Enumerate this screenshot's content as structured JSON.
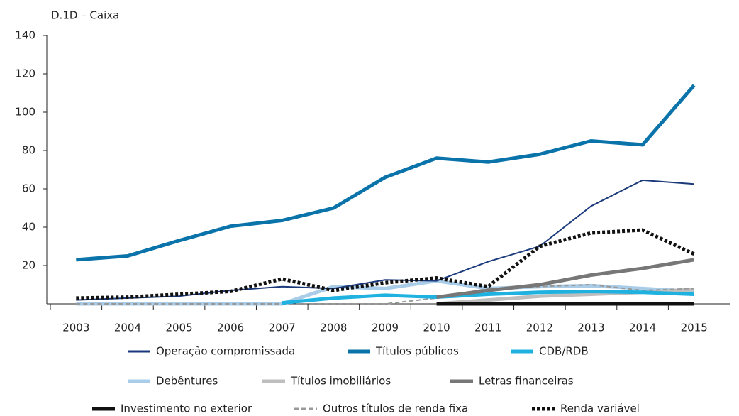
{
  "chart_data": {
    "type": "line",
    "title": "D.1D – Caixa",
    "categories": [
      "2003",
      "2004",
      "2005",
      "2006",
      "2007",
      "2008",
      "2009",
      "2010",
      "2011",
      "2012",
      "2013",
      "2014",
      "2015"
    ],
    "ylim": [
      0,
      140
    ],
    "yticks": [
      20,
      40,
      60,
      80,
      100,
      120,
      140
    ],
    "series": [
      {
        "name": "Operação compromissada",
        "color": "#1b3a7c",
        "values": [
          2,
          3,
          4,
          7,
          9,
          8,
          12.5,
          12,
          22,
          30,
          51,
          64.5,
          62.5
        ]
      },
      {
        "name": "Títulos públicos",
        "color": "#0a73aa",
        "values": [
          23,
          25,
          33,
          40.5,
          43.5,
          50,
          66,
          76,
          74,
          78,
          85,
          83,
          114
        ]
      },
      {
        "name": "CDB/RDB",
        "color": "#1fb1e0",
        "values": [
          null,
          null,
          null,
          null,
          0.5,
          3,
          4.5,
          3.5,
          5,
          6,
          6.5,
          6,
          5
        ]
      },
      {
        "name": "Debêntures",
        "color": "#a9cde9",
        "values": [
          0,
          0,
          0,
          0,
          0,
          9,
          8,
          12,
          8,
          9,
          9.5,
          8,
          6.5
        ]
      },
      {
        "name": "Títulos imobiliários",
        "color": "#bebebe",
        "values": [
          null,
          null,
          null,
          null,
          null,
          null,
          null,
          0,
          2,
          4,
          5,
          6,
          7.5
        ]
      },
      {
        "name": "Letras financeiras",
        "color": "#777777",
        "values": [
          null,
          null,
          null,
          null,
          null,
          null,
          null,
          3.5,
          7,
          10,
          15,
          18.5,
          23
        ]
      },
      {
        "name": "Investimento no exterior",
        "color": "#111111",
        "values": [
          null,
          null,
          null,
          null,
          null,
          null,
          null,
          0,
          0,
          0,
          0,
          0,
          0
        ]
      },
      {
        "name": "Outros títulos de renda fixa",
        "color": "#999999",
        "dash": "dashed",
        "values": [
          0,
          0,
          0,
          0,
          0,
          0,
          0,
          3,
          8,
          9,
          10,
          7,
          8
        ]
      },
      {
        "name": "Renda variável",
        "color": "#111111",
        "dash": "dotted",
        "values": [
          3,
          3.5,
          5,
          6.5,
          13,
          7,
          11,
          13.5,
          9,
          30,
          37,
          38.5,
          26
        ]
      }
    ]
  }
}
